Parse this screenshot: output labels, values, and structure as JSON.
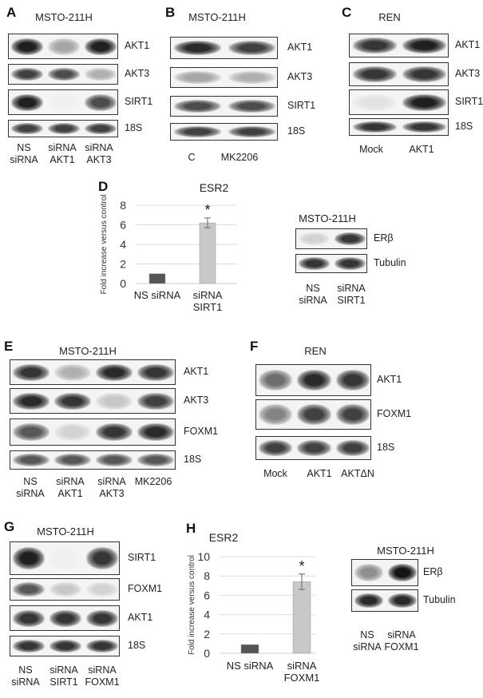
{
  "panels": [
    {
      "id": "A",
      "title": "MSTO-211H",
      "lanes": [
        "NS\nsiRNA",
        "siRNA\nAKT1",
        "siRNA\nAKT3"
      ],
      "rows": [
        {
          "label": "AKT1",
          "intensity": [
            0.95,
            0.35,
            0.95
          ]
        },
        {
          "label": "AKT3",
          "intensity": [
            0.8,
            0.75,
            0.3
          ]
        },
        {
          "label": "SIRT1",
          "intensity": [
            0.95,
            0.02,
            0.75
          ]
        },
        {
          "label": "18S",
          "intensity": [
            0.8,
            0.8,
            0.8
          ]
        }
      ]
    },
    {
      "id": "B",
      "title": "MSTO-211H",
      "lanes": [
        "C",
        "MK2206"
      ],
      "rows": [
        {
          "label": "AKT1",
          "intensity": [
            0.9,
            0.8
          ]
        },
        {
          "label": "AKT3",
          "intensity": [
            0.35,
            0.3
          ]
        },
        {
          "label": "SIRT1",
          "intensity": [
            0.75,
            0.75
          ]
        },
        {
          "label": "18S",
          "intensity": [
            0.8,
            0.8
          ]
        }
      ]
    },
    {
      "id": "C",
      "title": "REN",
      "lanes": [
        "Mock",
        "AKT1"
      ],
      "rows": [
        {
          "label": "AKT1",
          "intensity": [
            0.85,
            0.95
          ]
        },
        {
          "label": "AKT3",
          "intensity": [
            0.85,
            0.85
          ]
        },
        {
          "label": "SIRT1",
          "intensity": [
            0.08,
            0.95
          ]
        },
        {
          "label": "18S",
          "intensity": [
            0.85,
            0.85
          ]
        }
      ]
    },
    {
      "id": "D",
      "title": "MSTO-211H",
      "lanes": [
        "NS\nsiRNA",
        "siRNA\nSIRT1"
      ],
      "rows": [
        {
          "label": "ERβ",
          "intensity": [
            0.15,
            0.85
          ]
        },
        {
          "label": "Tubulin",
          "intensity": [
            0.85,
            0.85
          ]
        }
      ]
    },
    {
      "id": "E",
      "title": "MSTO-211H",
      "lanes": [
        "NS\nsiRNA",
        "siRNA\nAKT1",
        "siRNA\nAKT3",
        "MK2206"
      ],
      "rows": [
        {
          "label": "AKT1",
          "intensity": [
            0.85,
            0.3,
            0.9,
            0.85
          ]
        },
        {
          "label": "AKT3",
          "intensity": [
            0.9,
            0.85,
            0.2,
            0.8
          ]
        },
        {
          "label": "FOXM1",
          "intensity": [
            0.7,
            0.15,
            0.85,
            0.9
          ]
        },
        {
          "label": "18S",
          "intensity": [
            0.7,
            0.7,
            0.7,
            0.7
          ]
        }
      ]
    },
    {
      "id": "F",
      "title": "REN",
      "lanes": [
        "Mock",
        "AKT1",
        "AKTΔN"
      ],
      "rows": [
        {
          "label": "AKT1",
          "intensity": [
            0.6,
            0.9,
            0.85
          ]
        },
        {
          "label": "FOXM1",
          "intensity": [
            0.5,
            0.8,
            0.8
          ]
        },
        {
          "label": "18S",
          "intensity": [
            0.8,
            0.8,
            0.8
          ]
        }
      ]
    },
    {
      "id": "G",
      "title": "MSTO-211H",
      "lanes": [
        "NS\nsiRNA",
        "siRNA\nSIRT1",
        "siRNA\nFOXM1"
      ],
      "rows": [
        {
          "label": "SIRT1",
          "intensity": [
            0.95,
            0.02,
            0.85
          ]
        },
        {
          "label": "FOXM1",
          "intensity": [
            0.7,
            0.2,
            0.15
          ]
        },
        {
          "label": "AKT1",
          "intensity": [
            0.85,
            0.85,
            0.85
          ]
        },
        {
          "label": "18S",
          "intensity": [
            0.85,
            0.85,
            0.85
          ]
        }
      ]
    },
    {
      "id": "H",
      "title": "MSTO-211H",
      "lanes": [
        "NS\nsiRNA",
        "siRNA\nFOXM1"
      ],
      "rows": [
        {
          "label": "ERβ",
          "intensity": [
            0.45,
            1.0
          ]
        },
        {
          "label": "Tubulin",
          "intensity": [
            0.9,
            0.9
          ]
        }
      ]
    }
  ],
  "chart_data": [
    {
      "panel": "D",
      "type": "bar",
      "title": "ESR2",
      "ylabel": "Fold increase versus control",
      "xlabel": "",
      "ylim": [
        0,
        8
      ],
      "yticks": [
        0,
        2,
        4,
        6,
        8
      ],
      "grid": true,
      "categories": [
        "NS siRNA",
        "siRNA\nSIRT1"
      ],
      "values": [
        1.0,
        6.2
      ],
      "errors": [
        0,
        0.5
      ],
      "annotations": [
        "",
        "*"
      ],
      "colors": [
        "#555555",
        "#c8c8c8"
      ]
    },
    {
      "panel": "H",
      "type": "bar",
      "title": "ESR2",
      "ylabel": "Fold increase versus control",
      "xlabel": "",
      "ylim": [
        0,
        10
      ],
      "yticks": [
        0,
        2,
        4,
        6,
        8,
        10
      ],
      "grid": true,
      "categories": [
        "NS siRNA",
        "siRNA\nFOXM1"
      ],
      "values": [
        0.9,
        7.4
      ],
      "errors": [
        0.05,
        0.8
      ],
      "annotations": [
        "",
        "*"
      ],
      "colors": [
        "#555555",
        "#c8c8c8"
      ]
    }
  ]
}
